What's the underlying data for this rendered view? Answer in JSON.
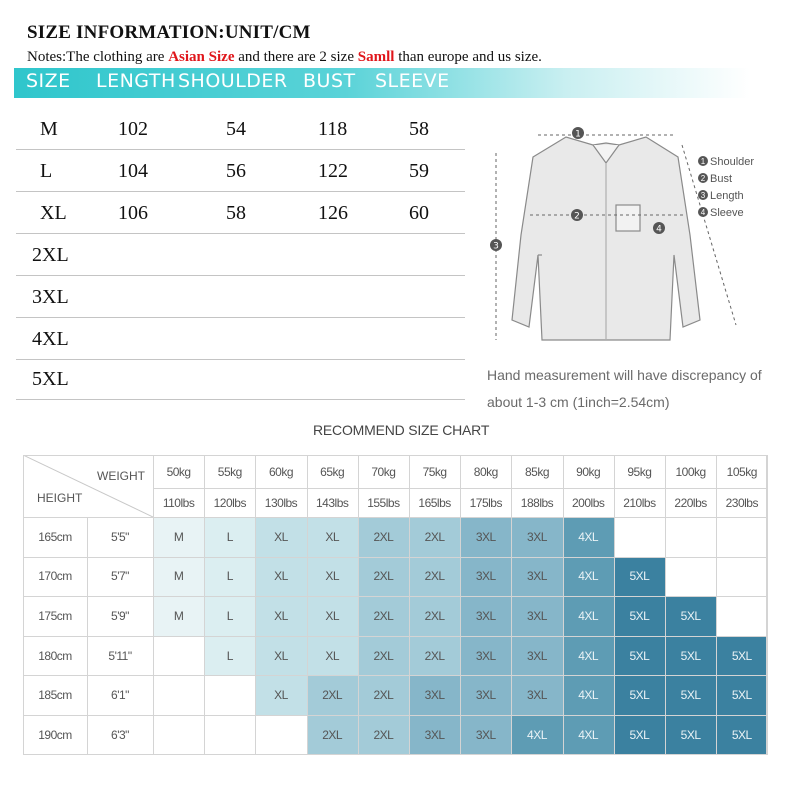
{
  "header": {
    "title": "SIZE INFORMATION:UNIT/CM",
    "notes_prefix": "Notes:The clothing are ",
    "notes_highlight1": "Asian Size",
    "notes_middle": " and there are 2 size ",
    "notes_highlight2": "Samll",
    "notes_suffix": " than europe and us size."
  },
  "banner": [
    "SIZE",
    "LENGTH",
    "SHOULDER",
    "BUST",
    "SLEEVE"
  ],
  "size_table": [
    [
      "M",
      "102",
      "54",
      "118",
      "58"
    ],
    [
      "L",
      "104",
      "56",
      "122",
      "59"
    ],
    [
      "XL",
      "106",
      "58",
      "126",
      "60"
    ],
    [
      "2XL",
      "",
      "",
      "",
      ""
    ],
    [
      "3XL",
      "",
      "",
      "",
      ""
    ],
    [
      "4XL",
      "",
      "",
      "",
      ""
    ],
    [
      "5XL",
      "",
      "",
      "",
      ""
    ]
  ],
  "diagram": {
    "legend": [
      "Shoulder",
      "Bust",
      "Length",
      "Sleeve"
    ],
    "markers": [
      "1",
      "2",
      "3",
      "4"
    ]
  },
  "hand_note": "Hand measurement will have discrepancy of about 1-3 cm  (1inch=2.54cm)",
  "recommend": {
    "title": "RECOMMEND SIZE CHART",
    "weight_label": "WEIGHT",
    "height_label": "HEIGHT",
    "weights_kg": [
      "50kg",
      "55kg",
      "60kg",
      "65kg",
      "70kg",
      "75kg",
      "80kg",
      "85kg",
      "90kg",
      "95kg",
      "100kg",
      "105kg"
    ],
    "weights_lbs": [
      "110lbs",
      "120lbs",
      "130lbs",
      "143lbs",
      "155lbs",
      "165lbs",
      "175lbs",
      "188lbs",
      "200lbs",
      "210lbs",
      "220lbs",
      "230lbs"
    ],
    "rows": [
      {
        "cm": "165cm",
        "ft": "5'5\"",
        "sizes": [
          "M",
          "L",
          "XL",
          "XL",
          "2XL",
          "2XL",
          "3XL",
          "3XL",
          "4XL",
          "",
          "",
          ""
        ]
      },
      {
        "cm": "170cm",
        "ft": "5'7\"",
        "sizes": [
          "M",
          "L",
          "XL",
          "XL",
          "2XL",
          "2XL",
          "3XL",
          "3XL",
          "4XL",
          "5XL",
          "",
          ""
        ]
      },
      {
        "cm": "175cm",
        "ft": "5'9\"",
        "sizes": [
          "M",
          "L",
          "XL",
          "XL",
          "2XL",
          "2XL",
          "3XL",
          "3XL",
          "4XL",
          "5XL",
          "5XL",
          ""
        ]
      },
      {
        "cm": "180cm",
        "ft": "5'11\"",
        "sizes": [
          "",
          "L",
          "XL",
          "XL",
          "2XL",
          "2XL",
          "3XL",
          "3XL",
          "4XL",
          "5XL",
          "5XL",
          "5XL"
        ]
      },
      {
        "cm": "185cm",
        "ft": "6'1\"",
        "sizes": [
          "",
          "",
          "XL",
          "2XL",
          "2XL",
          "3XL",
          "3XL",
          "3XL",
          "4XL",
          "5XL",
          "5XL",
          "5XL"
        ]
      },
      {
        "cm": "190cm",
        "ft": "6'3\"",
        "sizes": [
          "",
          "",
          "",
          "2XL",
          "2XL",
          "3XL",
          "3XL",
          "4XL",
          "4XL",
          "5XL",
          "5XL",
          "5XL"
        ]
      }
    ],
    "size_colors": {
      "M": "#e8f3f5",
      "L": "#dbeef1",
      "XL": "#c2e0e7",
      "2XL": "#a3cbd8",
      "3XL": "#86b6c9",
      "4XL": "#5e9cb4",
      "5XL": "#3b81a0"
    },
    "dark_text_sizes": [
      "4XL",
      "5XL"
    ]
  }
}
